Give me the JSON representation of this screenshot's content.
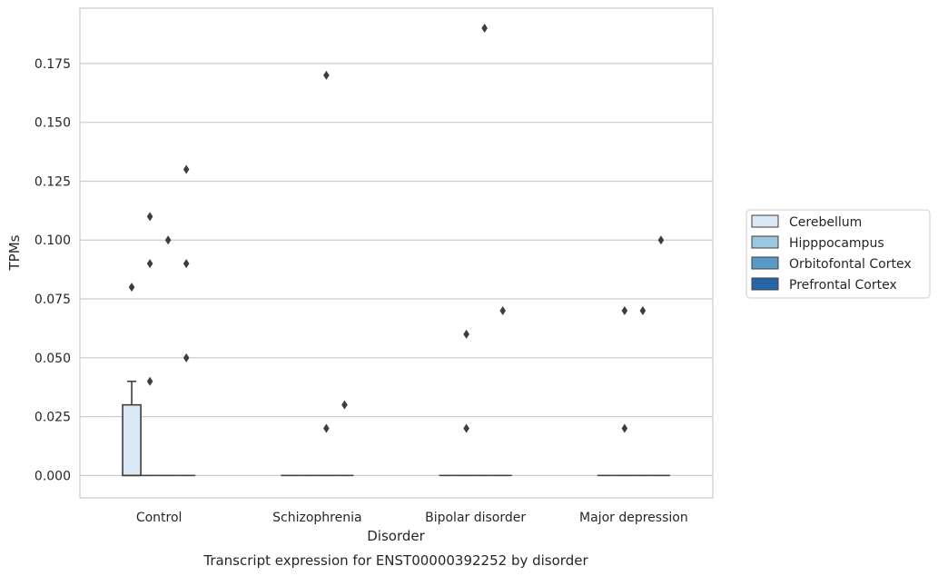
{
  "chart_data": {
    "type": "box",
    "title": "",
    "caption": "Transcript expression for ENST00000392252 by disorder",
    "xlabel": "Disorder",
    "ylabel": "TPMs",
    "ylim": [
      -0.0095,
      0.1985
    ],
    "yticks": [
      "0.000",
      "0.025",
      "0.050",
      "0.075",
      "0.100",
      "0.125",
      "0.150",
      "0.175"
    ],
    "grid": "horizontal",
    "legend_position": "right",
    "categories": [
      "Control",
      "Schizophrenia",
      "Bipolar disorder",
      "Major depression"
    ],
    "series": [
      {
        "name": "Cerebellum",
        "color": "#dbe9f6",
        "boxes": [
          {
            "q1": 0.0,
            "median": 0.0,
            "q3": 0.03,
            "whisker_low": 0.0,
            "whisker_high": 0.04,
            "outliers": [
              0.08
            ]
          },
          {
            "q1": 0.0,
            "median": 0.0,
            "q3": 0.0,
            "whisker_low": 0.0,
            "whisker_high": 0.0,
            "outliers": []
          },
          {
            "q1": 0.0,
            "median": 0.0,
            "q3": 0.0,
            "whisker_low": 0.0,
            "whisker_high": 0.0,
            "outliers": []
          },
          {
            "q1": 0.0,
            "median": 0.0,
            "q3": 0.0,
            "whisker_low": 0.0,
            "whisker_high": 0.0,
            "outliers": []
          }
        ]
      },
      {
        "name": "Hipppocampus",
        "color": "#9ac8e0",
        "boxes": [
          {
            "q1": 0.0,
            "median": 0.0,
            "q3": 0.0,
            "whisker_low": 0.0,
            "whisker_high": 0.0,
            "outliers": [
              0.04,
              0.09,
              0.11
            ]
          },
          {
            "q1": 0.0,
            "median": 0.0,
            "q3": 0.0,
            "whisker_low": 0.0,
            "whisker_high": 0.0,
            "outliers": []
          },
          {
            "q1": 0.0,
            "median": 0.0,
            "q3": 0.0,
            "whisker_low": 0.0,
            "whisker_high": 0.0,
            "outliers": [
              0.02,
              0.06
            ]
          },
          {
            "q1": 0.0,
            "median": 0.0,
            "q3": 0.0,
            "whisker_low": 0.0,
            "whisker_high": 0.0,
            "outliers": [
              0.02,
              0.07
            ]
          }
        ]
      },
      {
        "name": "Orbitofontal Cortex",
        "color": "#5a9ac6",
        "boxes": [
          {
            "q1": 0.0,
            "median": 0.0,
            "q3": 0.0,
            "whisker_low": 0.0,
            "whisker_high": 0.0,
            "outliers": [
              0.1
            ]
          },
          {
            "q1": 0.0,
            "median": 0.0,
            "q3": 0.0,
            "whisker_low": 0.0,
            "whisker_high": 0.0,
            "outliers": [
              0.02,
              0.17
            ]
          },
          {
            "q1": 0.0,
            "median": 0.0,
            "q3": 0.0,
            "whisker_low": 0.0,
            "whisker_high": 0.0,
            "outliers": [
              0.19
            ]
          },
          {
            "q1": 0.0,
            "median": 0.0,
            "q3": 0.0,
            "whisker_low": 0.0,
            "whisker_high": 0.0,
            "outliers": [
              0.07
            ]
          }
        ]
      },
      {
        "name": "Prefrontal Cortex",
        "color": "#2666a8",
        "boxes": [
          {
            "q1": 0.0,
            "median": 0.0,
            "q3": 0.0,
            "whisker_low": 0.0,
            "whisker_high": 0.0,
            "outliers": [
              0.05,
              0.09,
              0.13
            ]
          },
          {
            "q1": 0.0,
            "median": 0.0,
            "q3": 0.0,
            "whisker_low": 0.0,
            "whisker_high": 0.0,
            "outliers": [
              0.03
            ]
          },
          {
            "q1": 0.0,
            "median": 0.0,
            "q3": 0.0,
            "whisker_low": 0.0,
            "whisker_high": 0.0,
            "outliers": [
              0.07
            ]
          },
          {
            "q1": 0.0,
            "median": 0.0,
            "q3": 0.0,
            "whisker_low": 0.0,
            "whisker_high": 0.0,
            "outliers": [
              0.1
            ]
          }
        ]
      }
    ]
  }
}
